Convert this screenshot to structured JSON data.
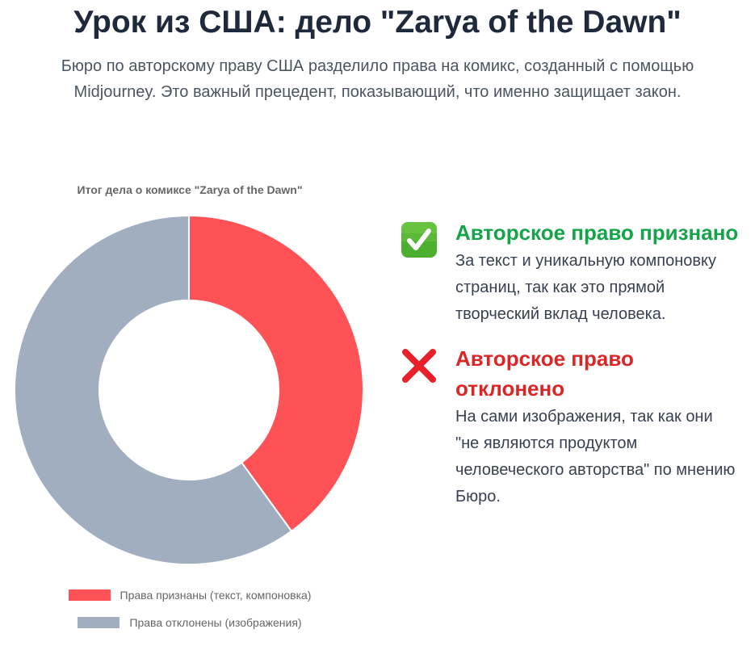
{
  "header": {
    "title": "Урок из США: дело \"Zarya of the Dawn\"",
    "subtitle": "Бюро по авторскому праву США разделило права на комикс, созданный с помощью Midjourney. Это важный прецедент, показывающий, что именно защищает закон."
  },
  "chart_data": {
    "type": "pie",
    "variant": "doughnut",
    "title": "Итог дела о комиксе \"Zarya of the Dawn\"",
    "legend_position": "bottom",
    "slices": [
      {
        "label": "Права признаны (текст, компоновка)",
        "value": 40,
        "color": "#ff5257"
      },
      {
        "label": "Права отклонены (изображения)",
        "value": 60,
        "color": "#a0aec0"
      }
    ]
  },
  "findings": [
    {
      "icon": "check-mark-icon",
      "heading": "Авторское право признано",
      "text": "За текст и уникальную компоновку страниц, так как это прямой творческий вклад человека.",
      "color": "#16a34a"
    },
    {
      "icon": "cross-mark-icon",
      "heading": "Авторское право отклонено",
      "text": "На сами изображения, так как они \"не являются продуктом человеческого авторства\" по мнению Бюро.",
      "color": "#dc2626"
    }
  ]
}
